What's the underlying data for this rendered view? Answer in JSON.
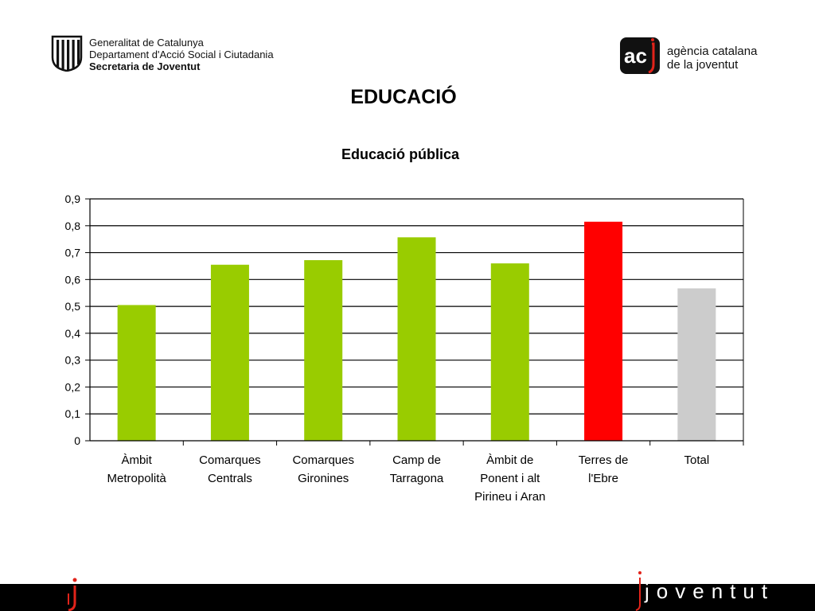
{
  "header": {
    "org_lines": [
      "Generalitat de Catalunya",
      "Departament d'Acció Social i Ciutadania",
      "Secretaria de Joventut"
    ],
    "agency_lines": [
      "agència catalana",
      "de la joventut"
    ],
    "agency_logo_text": "ac"
  },
  "page_title": "EDUCACIÓ",
  "footer": {
    "wordmark": "joventut",
    "bar_color": "#000000"
  },
  "chart_data": {
    "type": "bar",
    "title": "Educació pública",
    "xlabel": "",
    "ylabel": "",
    "ylim": [
      0,
      0.9
    ],
    "yticks": [
      "0",
      "0,1",
      "0,2",
      "0,3",
      "0,4",
      "0,5",
      "0,6",
      "0,7",
      "0,8",
      "0,9"
    ],
    "ytick_values": [
      0,
      0.1,
      0.2,
      0.3,
      0.4,
      0.5,
      0.6,
      0.7,
      0.8,
      0.9
    ],
    "grid": true,
    "legend": "none",
    "categories": [
      [
        "Àmbit",
        "Metropolità"
      ],
      [
        "Comarques",
        "Centrals"
      ],
      [
        "Comarques",
        "Gironines"
      ],
      [
        "Camp de",
        "Tarragona"
      ],
      [
        "Àmbit de",
        "Ponent i alt",
        "Pirineu i Aran"
      ],
      [
        "Terres de",
        "l'Ebre"
      ],
      [
        "Total"
      ]
    ],
    "values": [
      0.505,
      0.655,
      0.672,
      0.757,
      0.66,
      0.815,
      0.567
    ],
    "colors": [
      "#99cc00",
      "#99cc00",
      "#99cc00",
      "#99cc00",
      "#99cc00",
      "#ff0000",
      "#cccccc"
    ]
  }
}
